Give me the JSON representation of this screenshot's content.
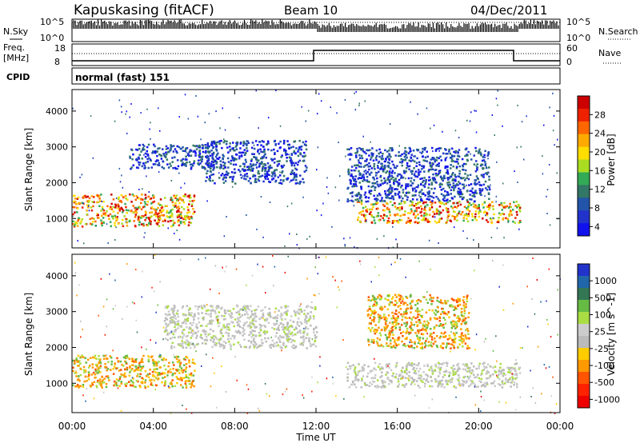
{
  "header": {
    "site": "Kapuskasing (fitACF)",
    "beam": "Beam 10",
    "date": "04/Dec/2011"
  },
  "top_panels": {
    "nsky_label": "N.Sky",
    "nsky_ticks": [
      "10^5",
      "10^0"
    ],
    "nsearch_label": "N.Search",
    "nsearch_ticks": [
      "10^5",
      "10^0"
    ],
    "freq_label": "Freq.",
    "freq_unit": "[MHz]",
    "freq_ticks": [
      "18",
      "8"
    ],
    "nave_label": "Nave",
    "nave_ticks": [
      "60",
      "0"
    ],
    "cpid_label": "CPID",
    "cpid_value": "normal (fast) 151"
  },
  "x_axis": {
    "label": "Time UT",
    "ticks": [
      "00:00",
      "04:00",
      "08:00",
      "12:00",
      "16:00",
      "20:00",
      "00:00"
    ]
  },
  "power_colorbar": {
    "label": "Power [dB]",
    "ticks": [
      "28",
      "24",
      "20",
      "16",
      "12",
      "8",
      "4"
    ],
    "colors": [
      "#cc0000",
      "#ee2200",
      "#ff6600",
      "#ffaa00",
      "#ffdd00",
      "#aadd22",
      "#33aa55",
      "#337766",
      "#2255aa",
      "#2233cc",
      "#1111ee"
    ]
  },
  "velocity_colorbar": {
    "label": "Velocity [m s^-1]",
    "ticks": [
      "1000",
      "500",
      "100",
      "25",
      "-25",
      "-100",
      "-500",
      "-1000"
    ],
    "colors": [
      "#2233cc",
      "#2266aa",
      "#337755",
      "#66bb44",
      "#aadd44",
      "#cccccc",
      "#bbbbbb",
      "#ffcc00",
      "#ff9900",
      "#ff5500",
      "#ff2200",
      "#ee0000"
    ]
  },
  "chart_data": [
    {
      "type": "heatmap",
      "title": "Power",
      "ylabel": "Slant Range [km]",
      "ylim": [
        180,
        4600
      ],
      "yticks": [
        1000,
        2000,
        3000,
        4000
      ],
      "xlim_hours": [
        0,
        24
      ],
      "regions": [
        {
          "t": [
            0.0,
            6.0
          ],
          "r": [
            800,
            1700
          ],
          "level": "high"
        },
        {
          "t": [
            2.8,
            7.0
          ],
          "r": [
            2400,
            3100
          ],
          "level": "low"
        },
        {
          "t": [
            6.5,
            11.5
          ],
          "r": [
            2000,
            3200
          ],
          "level": "low"
        },
        {
          "t": [
            14.0,
            22.0
          ],
          "r": [
            900,
            1500
          ],
          "level": "high"
        },
        {
          "t": [
            13.5,
            20.5
          ],
          "r": [
            1500,
            3000
          ],
          "level": "low"
        }
      ]
    },
    {
      "type": "heatmap",
      "title": "Velocity",
      "ylabel": "Slant Range [km]",
      "ylim": [
        180,
        4600
      ],
      "yticks": [
        1000,
        2000,
        3000,
        4000
      ],
      "xlim_hours": [
        0,
        24
      ],
      "regions": [
        {
          "t": [
            0.0,
            6.0
          ],
          "r": [
            900,
            1800
          ],
          "vel": "-100 to -500"
        },
        {
          "t": [
            4.5,
            12.0
          ],
          "r": [
            2000,
            3200
          ],
          "vel": "-25 to 25"
        },
        {
          "t": [
            13.5,
            22.0
          ],
          "r": [
            900,
            1600
          ],
          "vel": "-25 to 25"
        },
        {
          "t": [
            14.5,
            19.5
          ],
          "r": [
            2000,
            3500
          ],
          "vel": "-100 to -500"
        }
      ]
    }
  ]
}
